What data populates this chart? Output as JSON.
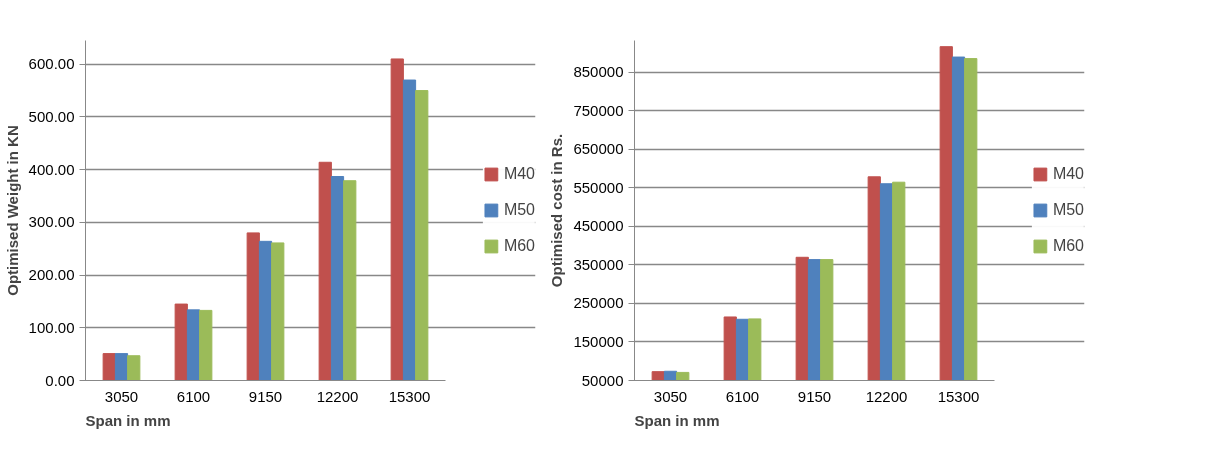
{
  "chart_data": [
    {
      "type": "bar",
      "xlabel": "Span in mm",
      "ylabel": "Optimised Weight in KN",
      "categories": [
        "3050",
        "6100",
        "9150",
        "12200",
        "15300"
      ],
      "series": [
        {
          "name": "M40",
          "color": "#c0504d",
          "values": [
            51,
            145,
            280,
            414,
            610
          ]
        },
        {
          "name": "M50",
          "color": "#4f81bd",
          "values": [
            51,
            134,
            264,
            387,
            570
          ]
        },
        {
          "name": "M60",
          "color": "#9bbb59",
          "values": [
            47,
            133,
            261,
            379,
            550
          ]
        }
      ],
      "ylim": [
        0,
        645
      ],
      "yticks": [
        {
          "value": 0,
          "label": "0.00"
        },
        {
          "value": 100,
          "label": "100.00"
        },
        {
          "value": 200,
          "label": "200.00"
        },
        {
          "value": 300,
          "label": "300.00"
        },
        {
          "value": 400,
          "label": "400.00"
        },
        {
          "value": 500,
          "label": "500.00"
        },
        {
          "value": 600,
          "label": "600.00"
        }
      ],
      "grid": "y",
      "legend": "right"
    },
    {
      "type": "bar",
      "xlabel": "Span in mm",
      "ylabel": "Optimised cost in Rs.",
      "categories": [
        "3050",
        "6100",
        "9150",
        "12200",
        "15300"
      ],
      "series": [
        {
          "name": "M40",
          "color": "#c0504d",
          "values": [
            73000,
            215000,
            370000,
            579000,
            917000
          ]
        },
        {
          "name": "M50",
          "color": "#4f81bd",
          "values": [
            74000,
            209000,
            364000,
            561000,
            890000
          ]
        },
        {
          "name": "M60",
          "color": "#9bbb59",
          "values": [
            71000,
            210000,
            364000,
            565000,
            886000
          ]
        }
      ],
      "ylim": [
        50000,
        933000
      ],
      "yticks": [
        50000,
        150000,
        250000,
        350000,
        450000,
        550000,
        650000,
        750000,
        850000
      ],
      "grid": "y",
      "legend": "right"
    }
  ]
}
